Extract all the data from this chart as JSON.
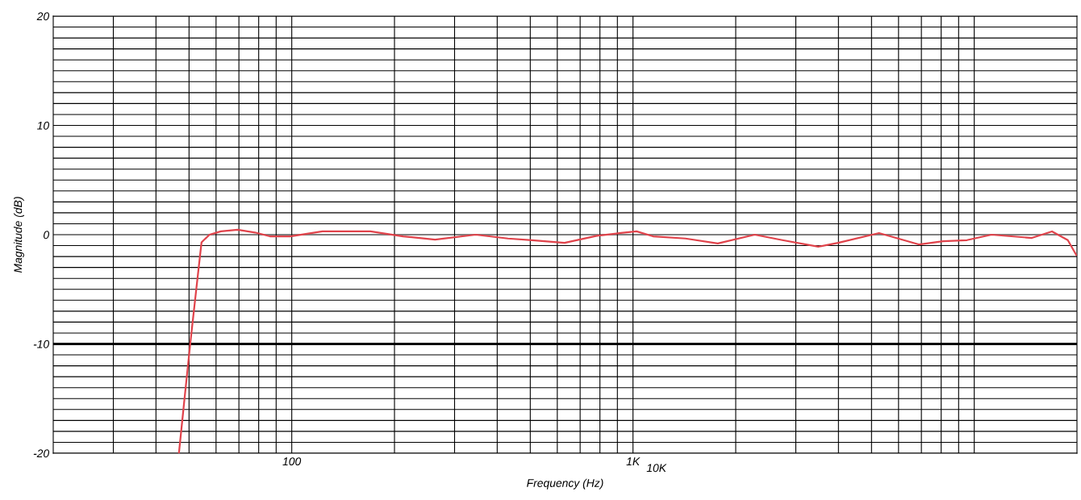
{
  "chart_data": {
    "type": "line",
    "xlabel": "Frequency (Hz)",
    "ylabel": "Magnitude (dB)",
    "log": "x",
    "xlim": [
      20,
      20000
    ],
    "xticks": [
      {
        "value": 30,
        "label": null
      },
      {
        "value": 40,
        "label": null
      },
      {
        "value": 50,
        "label": null
      },
      {
        "value": 60,
        "label": null
      },
      {
        "value": 70,
        "label": null
      },
      {
        "value": 80,
        "label": null
      },
      {
        "value": 90,
        "label": null
      },
      100,
      {
        "value": 200,
        "label": null
      },
      {
        "value": 300,
        "label": null
      },
      {
        "value": 400,
        "label": null
      },
      {
        "value": 500,
        "label": null
      },
      {
        "value": 600,
        "label": null
      },
      {
        "value": 700,
        "label": null
      },
      {
        "value": 800,
        "label": null
      },
      {
        "value": 900,
        "label": null
      },
      {
        "value": 1000,
        "label": "1K"
      },
      {
        "value": 2000,
        "label": null
      },
      {
        "value": 3000,
        "label": null
      },
      {
        "value": 4000,
        "label": null
      },
      {
        "value": 5000,
        "label": null
      },
      {
        "value": 6000,
        "label": null
      },
      {
        "value": 7000,
        "label": null
      },
      {
        "value": 8000,
        "label": null
      },
      {
        "value": 9000,
        "label": null
      },
      {
        "value": 10000,
        "label": null
      }
    ],
    "ylim": [
      -20,
      20
    ],
    "yticks": [
      -20,
      {
        "value": -19,
        "label": null
      },
      {
        "value": -18,
        "label": null
      },
      {
        "value": -17,
        "label": null
      },
      {
        "value": -16,
        "label": null
      },
      {
        "value": -15,
        "label": null
      },
      {
        "value": -14,
        "label": null
      },
      {
        "value": -13,
        "label": null
      },
      {
        "value": -12,
        "label": null
      },
      {
        "value": -11,
        "label": null
      },
      -10,
      {
        "value": -9,
        "label": null
      },
      {
        "value": -8,
        "label": null
      },
      {
        "value": -7,
        "label": null
      },
      {
        "value": -6,
        "label": null
      },
      {
        "value": -5,
        "label": null
      },
      {
        "value": -4,
        "label": null
      },
      {
        "value": -3,
        "label": null
      },
      {
        "value": -2,
        "label": null
      },
      {
        "value": -1,
        "label": null
      },
      0,
      {
        "value": 1,
        "label": null
      },
      {
        "value": 2,
        "label": null
      },
      {
        "value": 3,
        "label": null
      },
      {
        "value": 4,
        "label": null
      },
      {
        "value": 5,
        "label": null
      },
      {
        "value": 6,
        "label": null
      },
      {
        "value": 7,
        "label": null
      },
      {
        "value": 8,
        "label": null
      },
      {
        "value": 9,
        "label": null
      },
      10,
      {
        "value": 11,
        "label": null
      },
      {
        "value": 12,
        "label": null
      },
      {
        "value": 13,
        "label": null
      },
      {
        "value": 14,
        "label": null
      },
      {
        "value": 15,
        "label": null
      },
      {
        "value": 16,
        "label": null
      },
      {
        "value": 17,
        "label": null
      },
      {
        "value": 18,
        "label": null
      },
      {
        "value": 19,
        "label": null
      },
      20
    ],
    "annotations": [
      "10K"
    ],
    "grid": true,
    "marker": "none",
    "line_style": "solid",
    "ref_lines": [
      {
        "axis": "y",
        "value": -10,
        "label": null,
        "color": "#000000"
      }
    ],
    "series": [
      {
        "color": "#e0434b",
        "x": [
          46.7,
          48.5,
          50.4,
          52.5,
          54.4,
          57.4,
          62,
          69.4,
          78,
          86.3,
          99,
          123,
          170,
          212,
          263,
          346,
          430,
          506,
          630,
          784,
          921,
          1024,
          1145,
          1425,
          1772,
          2274,
          2740,
          3490,
          3990,
          5260,
          6900,
          8100,
          9520,
          11240,
          14750,
          16900,
          18800,
          19900
        ],
        "values": [
          -20,
          -15,
          -10,
          -5,
          -0.7,
          0,
          0.3,
          0.45,
          0.2,
          -0.15,
          -0.15,
          0.3,
          0.3,
          -0.15,
          -0.45,
          0,
          -0.35,
          -0.5,
          -0.75,
          -0.1,
          0.15,
          0.3,
          -0.15,
          -0.35,
          -0.8,
          0,
          -0.5,
          -1.1,
          -0.75,
          0.15,
          -0.9,
          -0.6,
          -0.5,
          0,
          -0.3,
          0.3,
          -0.5,
          -1.85
        ]
      }
    ]
  }
}
